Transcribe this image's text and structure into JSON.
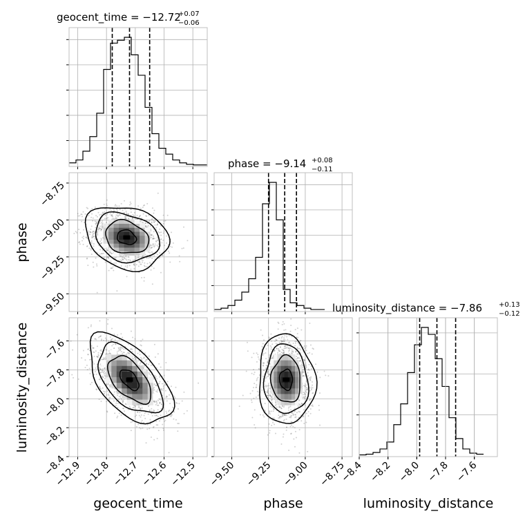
{
  "chart_data": {
    "type": "corner",
    "parameters": [
      "geocent_time",
      "phase",
      "luminosity_distance"
    ],
    "titles": [
      {
        "param": "geocent_time",
        "prefix": "geocent_time = ",
        "median": "−12.72",
        "plus": "+0.07",
        "minus": "−0.06"
      },
      {
        "param": "phase",
        "prefix": "phase = ",
        "median": "−9.14",
        "plus": "+0.08",
        "minus": "−0.11"
      },
      {
        "param": "luminosity_distance",
        "prefix": "luminosity_distance = ",
        "median": "−7.86",
        "plus": "+0.13",
        "minus": "−0.12"
      }
    ],
    "axis_labels": {
      "x": [
        "geocent_time",
        "phase",
        "luminosity_distance"
      ],
      "y": [
        "phase",
        "luminosity_distance"
      ]
    },
    "ranges": {
      "geocent_time": [
        -12.93,
        -12.45
      ],
      "phase": [
        -9.62,
        -8.68
      ],
      "luminosity_distance": [
        -8.4,
        -7.44
      ]
    },
    "ticks": {
      "geocent_time": [
        {
          "v": -12.9,
          "label": "−12.9"
        },
        {
          "v": -12.8,
          "label": "−12.8"
        },
        {
          "v": -12.7,
          "label": "−12.7"
        },
        {
          "v": -12.6,
          "label": "−12.6"
        },
        {
          "v": -12.5,
          "label": "−12.5"
        }
      ],
      "phase": [
        {
          "v": -9.5,
          "label": "−9.50"
        },
        {
          "v": -9.25,
          "label": "−9.25"
        },
        {
          "v": -9.0,
          "label": "−9.00"
        },
        {
          "v": -8.75,
          "label": "−8.75"
        }
      ],
      "luminosity_distance": [
        {
          "v": -8.4,
          "label": "−8.4"
        },
        {
          "v": -8.2,
          "label": "−8.2"
        },
        {
          "v": -8.0,
          "label": "−8.0"
        },
        {
          "v": -7.8,
          "label": "−7.8"
        },
        {
          "v": -7.6,
          "label": "−7.6"
        }
      ]
    },
    "quantiles": {
      "geocent_time": [
        -12.78,
        -12.72,
        -12.65
      ],
      "phase": [
        -9.25,
        -9.14,
        -9.06
      ],
      "luminosity_distance": [
        -7.98,
        -7.86,
        -7.73
      ]
    },
    "histograms": {
      "geocent_time": {
        "edges_start": -12.93,
        "bin_width": 0.024,
        "counts": [
          1,
          2,
          5,
          10,
          18,
          33,
          42,
          43,
          44,
          38,
          31,
          20,
          11,
          6,
          4,
          2,
          1,
          0.5,
          0.3,
          0.3
        ]
      },
      "phase": {
        "edges_start": -9.62,
        "bin_width": 0.047,
        "counts": [
          0.5,
          1,
          2,
          4,
          7,
          12,
          20,
          40,
          48,
          34,
          8,
          3,
          2,
          1,
          0.5,
          0.5
        ]
      },
      "luminosity_distance": {
        "edges_start": -8.4,
        "bin_width": 0.048,
        "counts": [
          0.3,
          0.5,
          1,
          2,
          4,
          9,
          15,
          24,
          32,
          37,
          35,
          28,
          20,
          11,
          5,
          2,
          0.8,
          0.5
        ]
      }
    },
    "pairs": [
      {
        "x": "geocent_time",
        "y": "phase",
        "center": [
          -12.73,
          -9.12
        ],
        "sigma": [
          0.06,
          0.09
        ],
        "rho": -0.2
      },
      {
        "x": "geocent_time",
        "y": "luminosity_distance",
        "center": [
          -12.72,
          -7.87
        ],
        "sigma": [
          0.06,
          0.13
        ],
        "rho": -0.55
      },
      {
        "x": "phase",
        "y": "luminosity_distance",
        "center": [
          -9.13,
          -7.87
        ],
        "sigma": [
          0.08,
          0.13
        ],
        "rho": -0.05
      }
    ],
    "grid": true,
    "colors": {
      "hist": "#000000",
      "points": "#777777",
      "grid": "#b0b0b0",
      "frame": "#bfbfbf"
    }
  }
}
